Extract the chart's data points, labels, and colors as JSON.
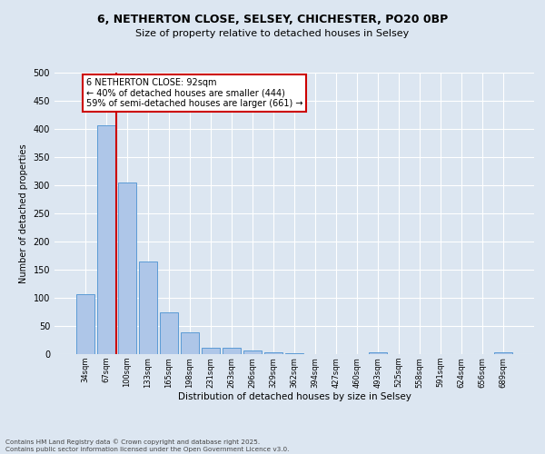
{
  "title_line1": "6, NETHERTON CLOSE, SELSEY, CHICHESTER, PO20 0BP",
  "title_line2": "Size of property relative to detached houses in Selsey",
  "xlabel": "Distribution of detached houses by size in Selsey",
  "ylabel": "Number of detached properties",
  "categories": [
    "34sqm",
    "67sqm",
    "100sqm",
    "133sqm",
    "165sqm",
    "198sqm",
    "231sqm",
    "263sqm",
    "296sqm",
    "329sqm",
    "362sqm",
    "394sqm",
    "427sqm",
    "460sqm",
    "493sqm",
    "525sqm",
    "558sqm",
    "591sqm",
    "624sqm",
    "656sqm",
    "689sqm"
  ],
  "values": [
    107,
    407,
    305,
    165,
    75,
    38,
    12,
    11,
    7,
    4,
    1,
    0,
    0,
    0,
    4,
    0,
    0,
    0,
    0,
    0,
    3
  ],
  "bar_color": "#aec6e8",
  "bar_edge_color": "#5b9bd5",
  "vline_x": 1.5,
  "vline_color": "#cc0000",
  "annotation_text": "6 NETHERTON CLOSE: 92sqm\n← 40% of detached houses are smaller (444)\n59% of semi-detached houses are larger (661) →",
  "annotation_box_color": "#ffffff",
  "annotation_box_edge_color": "#cc0000",
  "ylim": [
    0,
    500
  ],
  "yticks": [
    0,
    50,
    100,
    150,
    200,
    250,
    300,
    350,
    400,
    450,
    500
  ],
  "background_color": "#dce6f1",
  "plot_bg_color": "#dce6f1",
  "footer_text": "Contains HM Land Registry data © Crown copyright and database right 2025.\nContains public sector information licensed under the Open Government Licence v3.0.",
  "grid_color": "#ffffff",
  "title_fontsize": 9,
  "subtitle_fontsize": 8,
  "annotation_fontsize": 7,
  "ylabel_fontsize": 7,
  "xlabel_fontsize": 7.5,
  "ytick_fontsize": 7,
  "xtick_fontsize": 6
}
